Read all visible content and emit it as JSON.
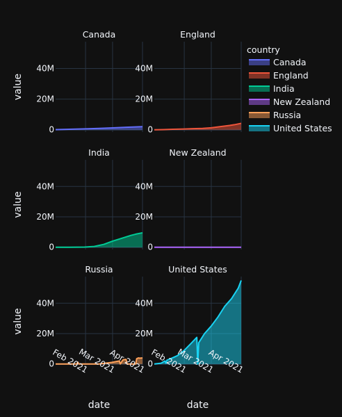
{
  "chart_data": {
    "type": "area",
    "layout": "facet-grid",
    "facet_columns": 2,
    "x_axis_title": "date",
    "y_axis_title": "value",
    "legend_title": "country",
    "legend_position": "top-right",
    "grid": true,
    "theme": "dark",
    "x_range": [
      "2021-01-01",
      "2021-04-01"
    ],
    "x_tick_labels": [
      "Feb 2021",
      "Mar 2021",
      "Apr 2021"
    ],
    "x_ticks": [
      "2021-02-01",
      "2021-03-01",
      "2021-04-01"
    ],
    "y_range": [
      -1500000,
      57500000
    ],
    "y_tick_labels": [
      "0",
      "20M",
      "40M"
    ],
    "y_ticks": [
      0,
      20000000,
      40000000
    ],
    "series": [
      {
        "name": "Canada",
        "color": "#636efa",
        "x": [
          "2021-01-01",
          "2021-01-15",
          "2021-02-01",
          "2021-02-15",
          "2021-03-01",
          "2021-03-15",
          "2021-04-01"
        ],
        "y": [
          100000,
          300000,
          600000,
          900000,
          1200000,
          1600000,
          2000000
        ]
      },
      {
        "name": "England",
        "color": "#EF553B",
        "x": [
          "2021-01-01",
          "2021-01-10",
          "2021-01-20",
          "2021-02-01",
          "2021-02-10",
          "2021-02-20",
          "2021-03-01",
          "2021-03-10",
          "2021-03-20",
          "2021-03-25",
          "2021-04-01"
        ],
        "y": [
          0,
          100000,
          300000,
          500000,
          700000,
          900000,
          1300000,
          2000000,
          2800000,
          3300000,
          4200000
        ]
      },
      {
        "name": "India",
        "color": "#00cc96",
        "x": [
          "2021-01-01",
          "2021-01-15",
          "2021-01-31",
          "2021-02-10",
          "2021-02-20",
          "2021-03-01",
          "2021-03-10",
          "2021-03-20",
          "2021-03-25",
          "2021-04-01"
        ],
        "y": [
          0,
          0,
          100000,
          500000,
          1900000,
          4000000,
          5800000,
          7800000,
          8600000,
          9500000
        ]
      },
      {
        "name": "New Zealand",
        "color": "#ab63fa",
        "x": [
          "2021-01-01",
          "2021-02-01",
          "2021-03-01",
          "2021-04-01"
        ],
        "y": [
          0,
          0,
          0,
          0
        ]
      },
      {
        "name": "Russia",
        "color": "#FFA15A",
        "x": [
          "2021-01-01",
          "2021-01-23",
          "2021-01-24",
          "2021-01-25",
          "2021-02-15",
          "2021-02-28",
          "2021-03-08",
          "2021-03-09",
          "2021-03-11",
          "2021-03-12",
          "2021-03-15",
          "2021-03-16",
          "2021-03-25",
          "2021-03-26",
          "2021-03-28",
          "2021-03-29",
          "2021-04-01"
        ],
        "y": [
          0,
          0,
          1200000,
          0,
          0,
          1000000,
          2000000,
          0,
          2000000,
          2800000,
          3000000,
          0,
          0,
          3500000,
          4000000,
          3800000,
          4000000
        ]
      },
      {
        "name": "United States",
        "color": "#19d3f3",
        "x": [
          "2021-01-01",
          "2021-01-08",
          "2021-01-12",
          "2021-01-13",
          "2021-01-14",
          "2021-01-18",
          "2021-01-25",
          "2021-02-01",
          "2021-02-08",
          "2021-02-14",
          "2021-02-15",
          "2021-02-16",
          "2021-02-17",
          "2021-02-22",
          "2021-03-01",
          "2021-03-08",
          "2021-03-15",
          "2021-03-22",
          "2021-03-29",
          "2021-04-01"
        ],
        "y": [
          0,
          500000,
          2000000,
          500000,
          2500000,
          3500000,
          5500000,
          9000000,
          13500000,
          17500000,
          0,
          14000000,
          15000000,
          20000000,
          25000000,
          31000000,
          38000000,
          43000000,
          50000000,
          55000000
        ]
      }
    ]
  }
}
